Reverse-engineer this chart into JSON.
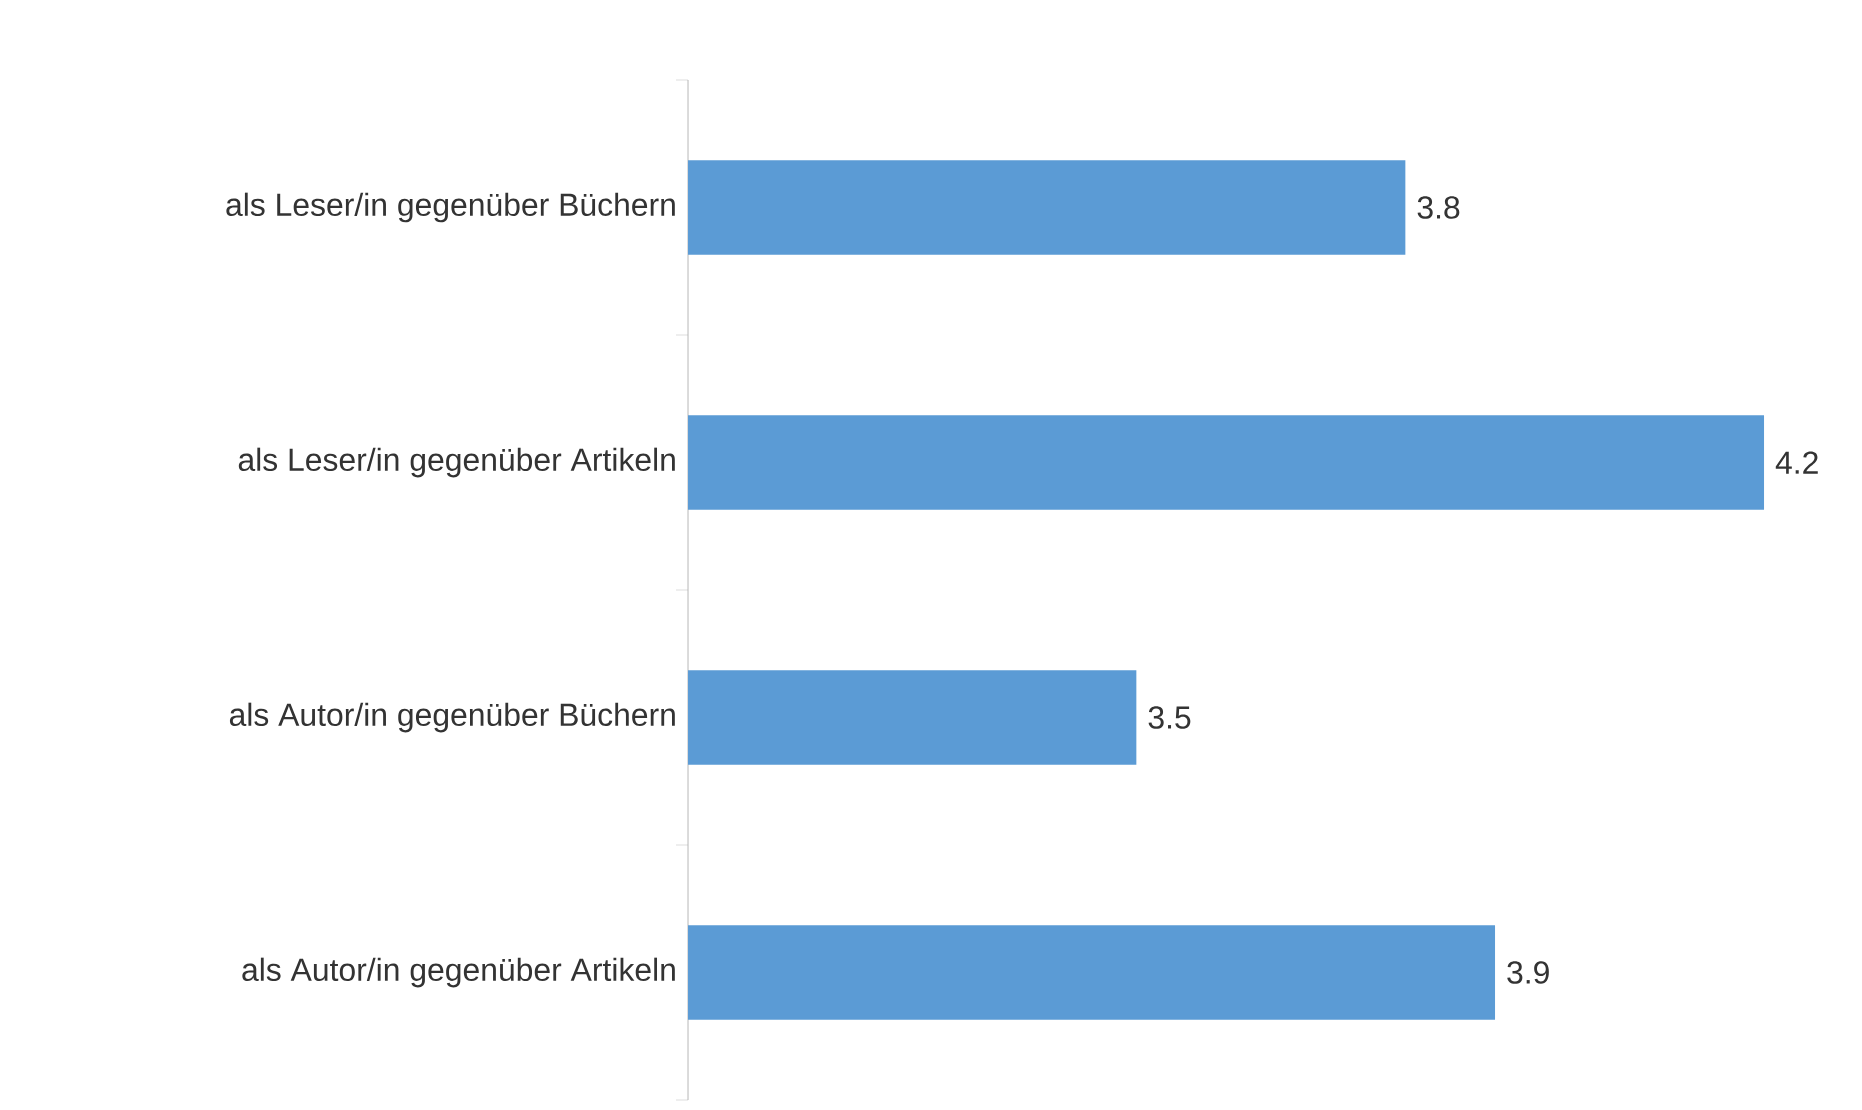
{
  "chart_data": {
    "type": "bar",
    "orientation": "horizontal",
    "categories": [
      "als Leser/in gegenüber Büchern",
      "als Leser/in gegenüber Artikeln",
      "als Autor/in gegenüber Büchern",
      "als Autor/in gegenüber Artikeln"
    ],
    "values": [
      3.8,
      4.2,
      3.5,
      3.9
    ],
    "color": "#5b9bd5",
    "xlim": [
      3,
      4.2
    ],
    "data_labels": true
  }
}
